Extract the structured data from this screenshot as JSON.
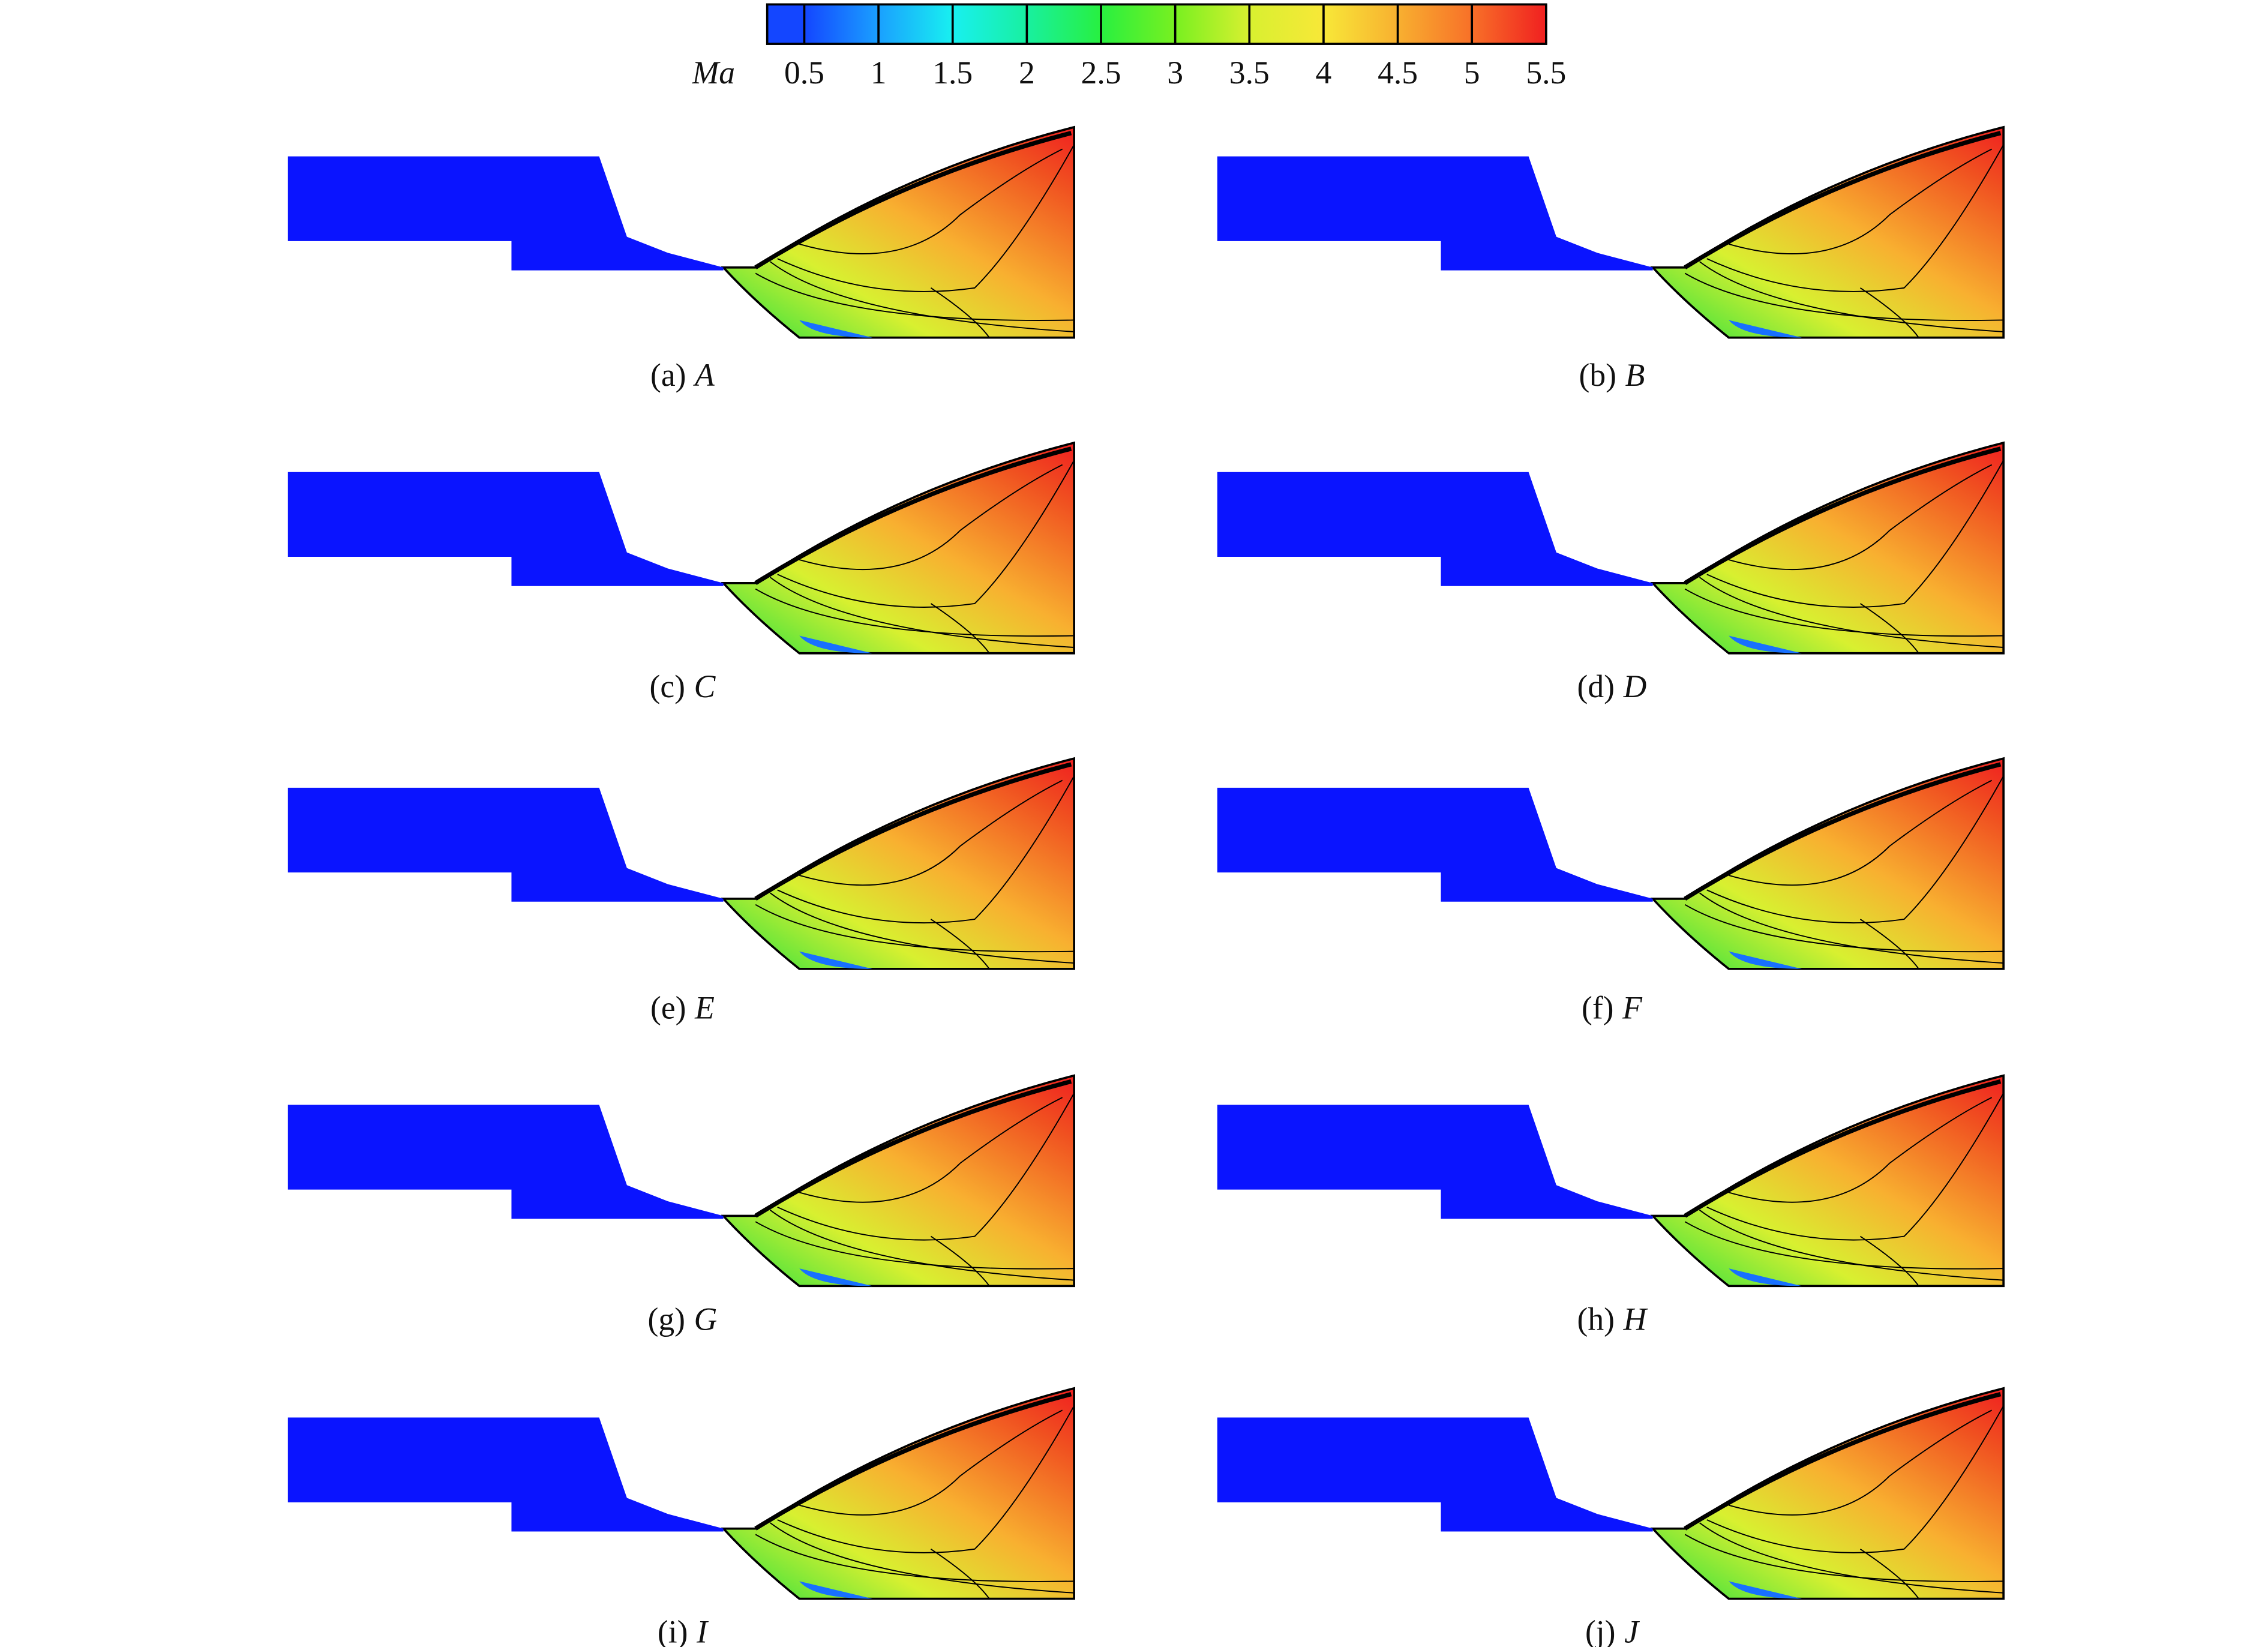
{
  "colorbar": {
    "label": "Ma",
    "range": [
      0.25,
      5.5
    ],
    "ticks": [
      0.5,
      1.0,
      1.5,
      2.0,
      2.5,
      3.0,
      3.5,
      4.0,
      4.5,
      5.0,
      5.5
    ],
    "colors": [
      "#1446ff",
      "#1aa0ff",
      "#18f0f0",
      "#18f0a0",
      "#28f040",
      "#78f020",
      "#d8f030",
      "#f8e838",
      "#f8b030",
      "#f87028",
      "#f02020"
    ]
  },
  "panels": [
    {
      "label": "(a)",
      "name": "A"
    },
    {
      "label": "(b)",
      "name": "B"
    },
    {
      "label": "(c)",
      "name": "C"
    },
    {
      "label": "(d)",
      "name": "D"
    },
    {
      "label": "(e)",
      "name": "E"
    },
    {
      "label": "(f)",
      "name": "F"
    },
    {
      "label": "(g)",
      "name": "G"
    },
    {
      "label": "(h)",
      "name": "H"
    },
    {
      "label": "(i)",
      "name": "I"
    },
    {
      "label": "(j)",
      "name": "J"
    }
  ]
}
